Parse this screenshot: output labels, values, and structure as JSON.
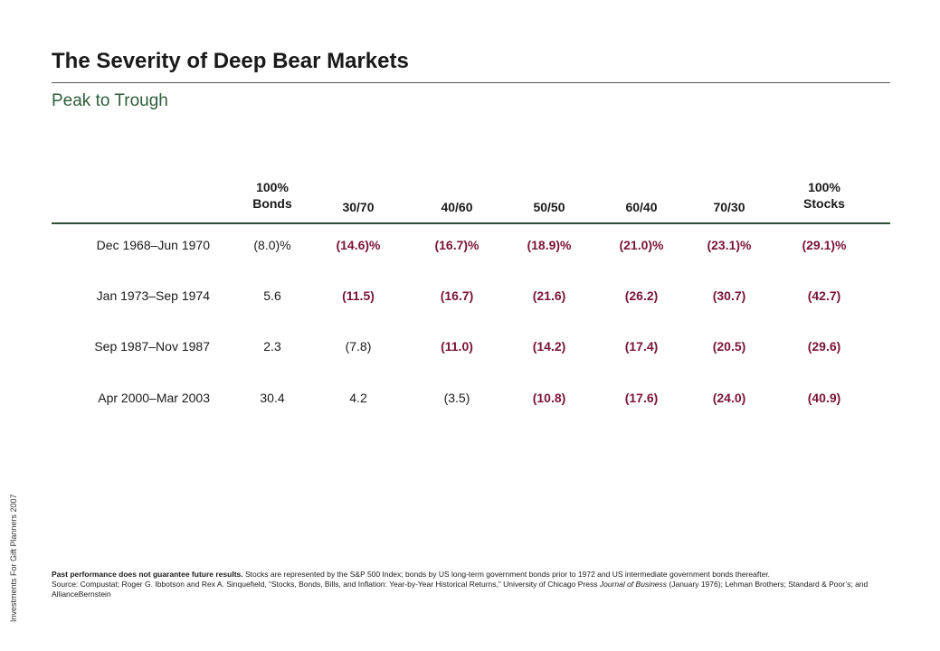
{
  "title": "The Severity of Deep Bear Markets",
  "subtitle": "Peak to Trough",
  "side_label": "Investments For Gift Planners 2007",
  "columns": [
    {
      "line1": "100%",
      "line2": "Bonds"
    },
    {
      "line1": "",
      "line2": "30/70"
    },
    {
      "line1": "",
      "line2": "40/60"
    },
    {
      "line1": "",
      "line2": "50/50"
    },
    {
      "line1": "",
      "line2": "60/40"
    },
    {
      "line1": "",
      "line2": "70/30"
    },
    {
      "line1": "100%",
      "line2": "Stocks"
    }
  ],
  "rows": [
    {
      "label": "Dec 1968–Jun 1970",
      "values": [
        "(8.0)%",
        "(14.6)%",
        "(16.7)%",
        "(18.9)%",
        "(21.0)%",
        "(23.1)%",
        "(29.1)%"
      ],
      "bold": [
        false,
        true,
        true,
        true,
        true,
        true,
        true
      ]
    },
    {
      "label": "Jan 1973–Sep 1974",
      "values": [
        "5.6",
        "(11.5)",
        "(16.7)",
        "(21.6)",
        "(26.2)",
        "(30.7)",
        "(42.7)"
      ],
      "bold": [
        false,
        true,
        true,
        true,
        true,
        true,
        true
      ]
    },
    {
      "label": "Sep 1987–Nov 1987",
      "values": [
        "2.3",
        "(7.8)",
        "(11.0)",
        "(14.2)",
        "(17.4)",
        "(20.5)",
        "(29.6)"
      ],
      "bold": [
        false,
        false,
        true,
        true,
        true,
        true,
        true
      ]
    },
    {
      "label": "Apr 2000–Mar 2003",
      "values": [
        "30.4",
        "4.2",
        "(3.5)",
        "(10.8)",
        "(17.6)",
        "(24.0)",
        "(40.9)"
      ],
      "bold": [
        false,
        false,
        false,
        true,
        true,
        true,
        true
      ]
    }
  ],
  "footnote": {
    "bold_lead": "Past performance does not guarantee future results.",
    "text1": " Stocks are represented by the S&P 500 Index; bonds by US long-term government bonds prior to 1972 and US intermediate government bonds thereafter.",
    "source_prefix": "Source: Compustat; Roger G. Ibbotson and Rex A. Sinquefield, “Stocks, Bonds, Bills, and Inflation: Year-by-Year Historical Returns,” University of Chicago Press ",
    "journal": "Journal of Business",
    "source_suffix": " (January 1976); Lehman Brothers; Standard & Poor’s; and AllianceBernstein"
  },
  "colors": {
    "negative": "#7a1437",
    "subtitle": "#2e5e3a",
    "rule": "#2e4f33"
  }
}
